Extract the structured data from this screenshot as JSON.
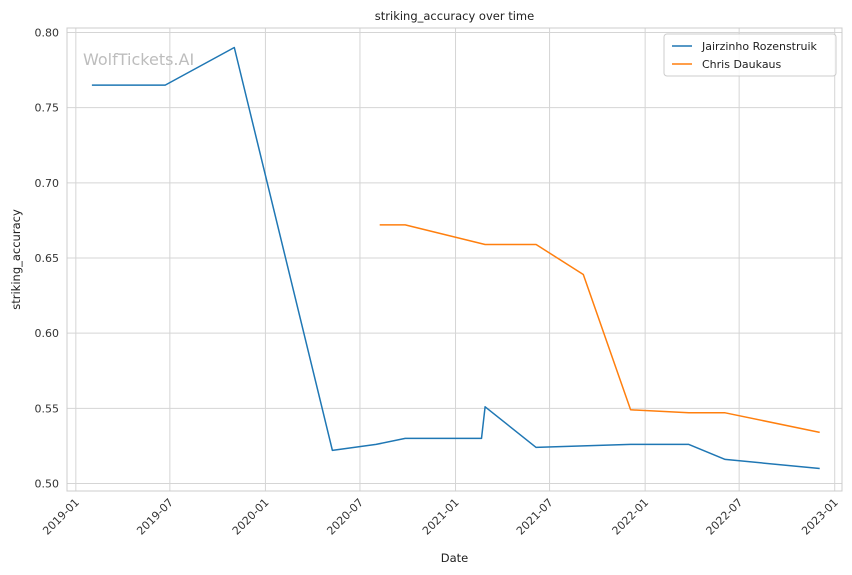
{
  "chart_data": {
    "type": "line",
    "title": "striking_accuracy over time",
    "xlabel": "Date",
    "ylabel": "striking_accuracy",
    "watermark": "WolfTickets.AI",
    "xlim": [
      "2018-12-15",
      "2023-01-15"
    ],
    "ylim": [
      0.495,
      0.803
    ],
    "x_ticks": [
      "2019-01",
      "2019-07",
      "2020-01",
      "2020-07",
      "2021-01",
      "2021-07",
      "2022-01",
      "2022-07",
      "2023-01"
    ],
    "x_tick_dates": [
      "2019-01-01",
      "2019-07-01",
      "2020-01-01",
      "2020-07-01",
      "2021-01-01",
      "2021-07-01",
      "2022-01-01",
      "2022-07-01",
      "2023-01-01"
    ],
    "y_ticks": [
      0.5,
      0.55,
      0.6,
      0.65,
      0.7,
      0.75,
      0.8
    ],
    "y_tick_labels": [
      "0.50",
      "0.55",
      "0.60",
      "0.65",
      "0.70",
      "0.75",
      "0.80"
    ],
    "grid": true,
    "legend_position": "top-right",
    "series": [
      {
        "name": "Jairzinho Rozenstruik",
        "color": "#1f77b4",
        "points": [
          {
            "x": "2019-02-01",
            "y": 0.765
          },
          {
            "x": "2019-06-22",
            "y": 0.765
          },
          {
            "x": "2019-11-02",
            "y": 0.79
          },
          {
            "x": "2020-05-09",
            "y": 0.522
          },
          {
            "x": "2020-08-01",
            "y": 0.526
          },
          {
            "x": "2020-09-26",
            "y": 0.53
          },
          {
            "x": "2021-02-20",
            "y": 0.53
          },
          {
            "x": "2021-02-27",
            "y": 0.551
          },
          {
            "x": "2021-06-05",
            "y": 0.524
          },
          {
            "x": "2021-12-04",
            "y": 0.526
          },
          {
            "x": "2022-03-26",
            "y": 0.526
          },
          {
            "x": "2022-06-04",
            "y": 0.516
          },
          {
            "x": "2022-12-03",
            "y": 0.51
          }
        ]
      },
      {
        "name": "Chris Daukaus",
        "color": "#ff7f0e",
        "points": [
          {
            "x": "2020-08-08",
            "y": 0.672
          },
          {
            "x": "2020-09-26",
            "y": 0.672
          },
          {
            "x": "2021-02-27",
            "y": 0.659
          },
          {
            "x": "2021-06-05",
            "y": 0.659
          },
          {
            "x": "2021-09-04",
            "y": 0.639
          },
          {
            "x": "2021-12-04",
            "y": 0.549
          },
          {
            "x": "2022-03-26",
            "y": 0.547
          },
          {
            "x": "2022-06-04",
            "y": 0.547
          },
          {
            "x": "2022-12-03",
            "y": 0.534
          }
        ]
      }
    ]
  }
}
